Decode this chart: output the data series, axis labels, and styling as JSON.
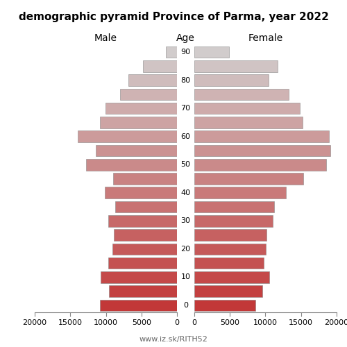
{
  "title": "demographic pyramid Province of Parma, year 2022",
  "age_groups": [
    0,
    5,
    10,
    15,
    20,
    25,
    30,
    35,
    40,
    45,
    50,
    55,
    60,
    65,
    70,
    75,
    80,
    85,
    90
  ],
  "male": [
    10800,
    9600,
    10700,
    9700,
    9100,
    8900,
    9700,
    8700,
    10200,
    9000,
    12800,
    11400,
    14000,
    10800,
    10100,
    8000,
    6800,
    4800,
    1600
  ],
  "female": [
    8600,
    9600,
    10500,
    9800,
    10100,
    10200,
    11000,
    11200,
    12900,
    15300,
    18500,
    19100,
    18900,
    15200,
    14800,
    13300,
    10400,
    11700,
    4900
  ],
  "xlim": 20000,
  "xticks": [
    0,
    5000,
    10000,
    15000,
    20000
  ],
  "age_tick_step": 10,
  "bar_height": 0.82,
  "title_fontsize": 11,
  "label_fontsize": 10,
  "tick_fontsize": 8,
  "footer": "www.iz.sk/RITH52",
  "footer_fontsize": 8,
  "bg_color": "#ffffff",
  "edgecolor": "#888888",
  "edgewidth": 0.4,
  "colors_top_to_bottom": [
    "#d0d0d0",
    "#c4c4c4",
    "#c8b8b8",
    "#c0b0b0",
    "#c8a8a8",
    "#c09898",
    "#c09090",
    "#b88888",
    "#c08080",
    "#b87878",
    "#c07070",
    "#b86868",
    "#c06060",
    "#b85858",
    "#c05050",
    "#b84848",
    "#c04040",
    "#b83838",
    "#b83030"
  ]
}
